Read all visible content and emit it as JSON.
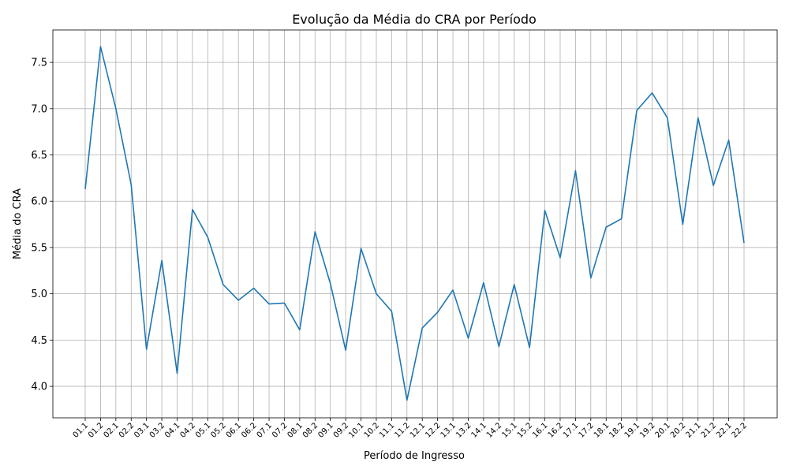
{
  "chart_data": {
    "type": "line",
    "title": "Evolução da Média do CRA por Período",
    "xlabel": "Período de Ingresso",
    "ylabel": "Média do CRA",
    "ylim": [
      3.66,
      7.85
    ],
    "yticks": [
      4.0,
      4.5,
      5.0,
      5.5,
      6.0,
      6.5,
      7.0,
      7.5
    ],
    "grid": true,
    "line_color": "#1f77b4",
    "categories": [
      "01.1",
      "01.2",
      "02.1",
      "02.2",
      "03.1",
      "03.2",
      "04.1",
      "04.2",
      "05.1",
      "05.2",
      "06.1",
      "06.2",
      "07.1",
      "07.2",
      "08.1",
      "08.2",
      "09.1",
      "09.2",
      "10.1",
      "10.2",
      "11.1",
      "11.2",
      "12.1",
      "12.2",
      "13.1",
      "13.2",
      "14.1",
      "14.2",
      "15.1",
      "15.2",
      "16.1",
      "16.2",
      "17.1",
      "17.2",
      "18.1",
      "18.2",
      "19.1",
      "19.2",
      "20.1",
      "20.2",
      "21.1",
      "21.2",
      "22.1",
      "22.2"
    ],
    "values": [
      6.13,
      7.67,
      7.0,
      6.18,
      4.4,
      5.36,
      4.14,
      5.91,
      5.61,
      5.1,
      4.93,
      5.06,
      4.89,
      4.9,
      4.61,
      5.67,
      5.11,
      4.39,
      5.49,
      5.0,
      4.81,
      3.85,
      4.63,
      4.8,
      5.04,
      4.52,
      5.12,
      4.43,
      5.1,
      4.42,
      5.9,
      5.39,
      6.33,
      5.17,
      5.72,
      5.81,
      6.98,
      7.17,
      6.9,
      5.75,
      6.9,
      6.17,
      6.66,
      5.55
    ]
  }
}
